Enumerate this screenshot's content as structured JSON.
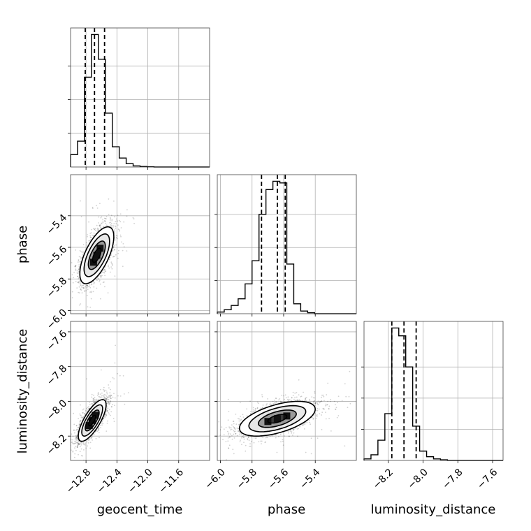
{
  "chart_data": {
    "type": "corner",
    "grid": true,
    "parameters": [
      {
        "name": "geocent_time",
        "label": "geocent_time",
        "range": [
          -13.0,
          -11.2
        ],
        "ticks": [
          -12.8,
          -12.4,
          -12.0,
          -11.6
        ],
        "tick_labels": [
          "−12.8",
          "−12.4",
          "−12.0",
          "−11.6"
        ],
        "quantiles": [
          -12.81,
          -12.69,
          -12.56
        ]
      },
      {
        "name": "phase",
        "label": "phase",
        "range": [
          -6.02,
          -5.14
        ],
        "ticks": [
          -6.0,
          -5.8,
          -5.6,
          -5.4
        ],
        "tick_labels": [
          "−6.0",
          "−5.8",
          "−5.6",
          "−5.4"
        ],
        "quantiles": [
          -5.74,
          -5.64,
          -5.59
        ]
      },
      {
        "name": "luminosity_distance",
        "label": "luminosity_distance",
        "range": [
          -8.34,
          -7.54
        ],
        "ticks": [
          -8.2,
          -8.0,
          -7.8,
          -7.6
        ],
        "tick_labels": [
          "−8.2",
          "−8.0",
          "−7.8",
          "−7.6"
        ],
        "quantiles": [
          -8.18,
          -8.11,
          -8.04
        ]
      }
    ],
    "histograms": [
      {
        "param": "geocent_time",
        "edges": [
          -13.0,
          -12.91,
          -12.82,
          -12.73,
          -12.64,
          -12.55,
          -12.46,
          -12.37,
          -12.28,
          -12.19,
          -12.1,
          -12.01,
          -11.92,
          -11.83,
          -11.74,
          -11.65,
          -11.56,
          -11.47,
          -11.38,
          -11.29,
          -11.2
        ],
        "counts": [
          55,
          115,
          400,
          590,
          480,
          240,
          90,
          40,
          15,
          5,
          2,
          1,
          0,
          0,
          0,
          0,
          0,
          0,
          0,
          0
        ]
      },
      {
        "param": "phase",
        "edges": [
          -6.02,
          -5.976,
          -5.932,
          -5.888,
          -5.844,
          -5.8,
          -5.756,
          -5.712,
          -5.668,
          -5.624,
          -5.58,
          -5.536,
          -5.492,
          -5.448,
          -5.404,
          -5.36,
          -5.316,
          -5.272,
          -5.228,
          -5.184,
          -5.14
        ],
        "counts": [
          5,
          12,
          25,
          45,
          90,
          160,
          300,
          375,
          400,
          395,
          150,
          30,
          8,
          3,
          0,
          0,
          0,
          0,
          0,
          0
        ]
      },
      {
        "param": "luminosity_distance",
        "edges": [
          -8.34,
          -8.3,
          -8.26,
          -8.22,
          -8.18,
          -8.14,
          -8.1,
          -8.06,
          -8.02,
          -7.98,
          -7.94,
          -7.9,
          -7.86,
          -7.82,
          -7.78,
          -7.74,
          -7.7,
          -7.66,
          -7.62,
          -7.58,
          -7.54
        ],
        "counts": [
          5,
          18,
          65,
          150,
          425,
          400,
          300,
          110,
          30,
          12,
          5,
          2,
          0,
          0,
          0,
          0,
          0,
          0,
          0,
          0
        ]
      }
    ],
    "joint": [
      {
        "x": "geocent_time",
        "y": "phase",
        "mean": [
          -12.66,
          -5.65
        ],
        "std": [
          0.11,
          0.09
        ],
        "corr": 0.65
      },
      {
        "x": "geocent_time",
        "y": "luminosity_distance",
        "mean": [
          -12.72,
          -8.11
        ],
        "std": [
          0.09,
          0.06
        ],
        "corr": 0.75
      },
      {
        "x": "phase",
        "y": "luminosity_distance",
        "mean": [
          -5.64,
          -8.1
        ],
        "std": [
          0.12,
          0.05
        ],
        "corr": 0.55
      }
    ],
    "contour_sigma_levels": [
      0.5,
      1.0,
      1.5,
      2.0
    ],
    "point_color": "#000000",
    "contour_color": "#000000"
  }
}
